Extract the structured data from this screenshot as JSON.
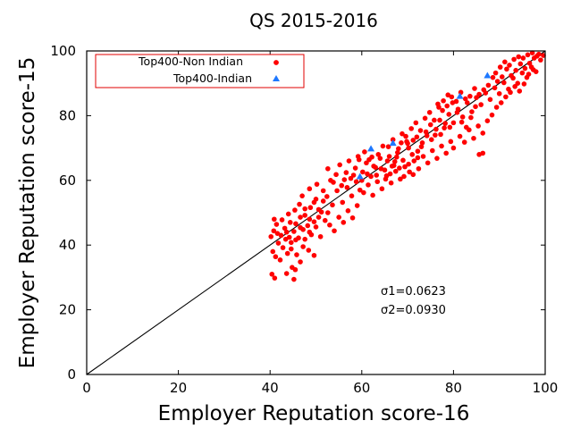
{
  "chart_data": {
    "type": "scatter",
    "title": "QS 2015-2016",
    "xlabel": "Employer Reputation score-16",
    "ylabel": "Employer Reputation score-15",
    "xlim": [
      0,
      100
    ],
    "ylim": [
      0,
      100
    ],
    "xticks": [
      0,
      20,
      40,
      60,
      80,
      100
    ],
    "yticks": [
      0,
      20,
      40,
      60,
      80,
      100
    ],
    "grid": false,
    "legend_position": "top-left",
    "reference_line": {
      "from": [
        0,
        0
      ],
      "to": [
        100,
        100
      ]
    },
    "annotations": [
      "σ1=0.0623",
      "σ2=0.0930"
    ],
    "series": [
      {
        "name": "Top400-Non Indian",
        "marker": "circle",
        "color": "#ff0000",
        "points": [
          [
            40.4,
            31.0
          ],
          [
            41.0,
            29.8
          ],
          [
            42.2,
            35.4
          ],
          [
            43.6,
            31.2
          ],
          [
            44.8,
            33.1
          ],
          [
            45.5,
            32.4
          ],
          [
            45.2,
            29.4
          ],
          [
            40.6,
            38.0
          ],
          [
            41.2,
            36.4
          ],
          [
            41.8,
            40.6
          ],
          [
            42.8,
            39.2
          ],
          [
            43.8,
            37.4
          ],
          [
            44.6,
            38.8
          ],
          [
            45.8,
            37.0
          ],
          [
            46.6,
            34.8
          ],
          [
            47.2,
            39.5
          ],
          [
            48.4,
            38.4
          ],
          [
            49.6,
            36.8
          ],
          [
            40.2,
            42.6
          ],
          [
            40.8,
            44.4
          ],
          [
            41.4,
            46.4
          ],
          [
            40.9,
            48.0
          ],
          [
            42.4,
            43.0
          ],
          [
            43.2,
            45.2
          ],
          [
            44.2,
            42.4
          ],
          [
            45.2,
            44.2
          ],
          [
            46.2,
            42.2
          ],
          [
            47.2,
            44.8
          ],
          [
            48.2,
            46.0
          ],
          [
            49.0,
            43.2
          ],
          [
            50.0,
            45.6
          ],
          [
            51.0,
            42.6
          ],
          [
            52.0,
            47.6
          ],
          [
            53.0,
            46.2
          ],
          [
            54.0,
            44.4
          ],
          [
            55.0,
            48.6
          ],
          [
            56.0,
            47.0
          ],
          [
            57.0,
            50.6
          ],
          [
            58.0,
            48.4
          ],
          [
            59.0,
            52.2
          ],
          [
            44.0,
            49.6
          ],
          [
            45.4,
            50.8
          ],
          [
            46.4,
            52.6
          ],
          [
            47.6,
            49.2
          ],
          [
            48.8,
            51.6
          ],
          [
            50.0,
            54.2
          ],
          [
            51.2,
            50.2
          ],
          [
            52.4,
            55.0
          ],
          [
            53.6,
            52.4
          ],
          [
            54.6,
            56.8
          ],
          [
            55.8,
            53.2
          ],
          [
            56.8,
            57.8
          ],
          [
            57.8,
            55.2
          ],
          [
            58.8,
            59.6
          ],
          [
            59.6,
            57.0
          ],
          [
            47.0,
            55.2
          ],
          [
            48.6,
            57.4
          ],
          [
            50.2,
            58.8
          ],
          [
            51.6,
            56.8
          ],
          [
            53.2,
            60.0
          ],
          [
            54.4,
            61.8
          ],
          [
            55.6,
            58.4
          ],
          [
            56.6,
            62.4
          ],
          [
            57.6,
            60.6
          ],
          [
            58.6,
            63.8
          ],
          [
            59.4,
            66.4
          ],
          [
            60.2,
            62.6
          ],
          [
            61.0,
            65.4
          ],
          [
            62.0,
            61.2
          ],
          [
            63.0,
            64.0
          ],
          [
            64.0,
            66.8
          ],
          [
            65.0,
            63.2
          ],
          [
            66.0,
            67.4
          ],
          [
            67.0,
            64.6
          ],
          [
            68.0,
            69.8
          ],
          [
            69.0,
            66.2
          ],
          [
            70.0,
            71.4
          ],
          [
            71.0,
            68.0
          ],
          [
            72.0,
            73.4
          ],
          [
            73.0,
            70.4
          ],
          [
            60.4,
            56.2
          ],
          [
            61.4,
            58.6
          ],
          [
            62.4,
            55.4
          ],
          [
            63.4,
            59.6
          ],
          [
            64.4,
            57.4
          ],
          [
            65.4,
            61.4
          ],
          [
            66.4,
            59.2
          ],
          [
            67.4,
            62.8
          ],
          [
            68.4,
            60.4
          ],
          [
            69.4,
            64.2
          ],
          [
            70.4,
            62.6
          ],
          [
            71.4,
            66.0
          ],
          [
            72.4,
            63.6
          ],
          [
            73.4,
            67.4
          ],
          [
            74.4,
            65.4
          ],
          [
            75.4,
            69.2
          ],
          [
            76.4,
            66.8
          ],
          [
            77.4,
            70.6
          ],
          [
            78.4,
            68.4
          ],
          [
            79.4,
            72.0
          ],
          [
            74.0,
            75.0
          ],
          [
            75.0,
            77.2
          ],
          [
            76.0,
            74.0
          ],
          [
            77.0,
            78.6
          ],
          [
            78.0,
            76.2
          ],
          [
            79.0,
            80.4
          ],
          [
            80.0,
            77.8
          ],
          [
            81.0,
            82.0
          ],
          [
            82.0,
            79.6
          ],
          [
            83.0,
            84.0
          ],
          [
            84.0,
            81.2
          ],
          [
            85.0,
            85.6
          ],
          [
            86.0,
            83.4
          ],
          [
            87.0,
            87.0
          ],
          [
            88.0,
            85.0
          ],
          [
            89.0,
            88.6
          ],
          [
            90.0,
            86.8
          ],
          [
            91.0,
            90.2
          ],
          [
            92.0,
            88.2
          ],
          [
            93.0,
            91.6
          ],
          [
            94.0,
            90.0
          ],
          [
            95.0,
            93.2
          ],
          [
            96.0,
            91.8
          ],
          [
            97.0,
            95.0
          ],
          [
            98.0,
            93.6
          ],
          [
            99.0,
            97.2
          ],
          [
            99.6,
            98.6
          ],
          [
            98.6,
            99.0
          ],
          [
            97.6,
            97.8
          ],
          [
            96.6,
            96.2
          ],
          [
            95.6,
            94.6
          ],
          [
            94.6,
            96.0
          ],
          [
            93.6,
            94.0
          ],
          [
            92.6,
            92.4
          ],
          [
            91.6,
            94.4
          ],
          [
            90.6,
            92.0
          ],
          [
            89.6,
            90.6
          ],
          [
            88.6,
            91.8
          ],
          [
            87.6,
            89.4
          ],
          [
            86.6,
            88.0
          ],
          [
            85.6,
            86.6
          ],
          [
            84.6,
            88.4
          ],
          [
            83.6,
            86.0
          ],
          [
            82.6,
            85.2
          ],
          [
            81.6,
            87.2
          ],
          [
            80.6,
            84.4
          ],
          [
            79.6,
            85.8
          ],
          [
            78.6,
            83.0
          ],
          [
            77.6,
            81.6
          ],
          [
            76.6,
            83.6
          ],
          [
            85.6,
            68.0
          ],
          [
            86.4,
            68.4
          ],
          [
            80.0,
            70.0
          ],
          [
            81.4,
            73.6
          ],
          [
            82.4,
            71.8
          ],
          [
            83.4,
            75.6
          ],
          [
            84.4,
            73.0
          ],
          [
            85.4,
            76.8
          ],
          [
            86.4,
            74.6
          ],
          [
            87.4,
            78.4
          ],
          [
            88.4,
            80.2
          ],
          [
            89.4,
            82.6
          ],
          [
            90.4,
            84.0
          ],
          [
            91.4,
            85.8
          ],
          [
            92.4,
            87.2
          ],
          [
            93.4,
            89.0
          ],
          [
            94.4,
            87.6
          ],
          [
            95.4,
            89.8
          ],
          [
            96.4,
            92.8
          ],
          [
            97.4,
            94.2
          ],
          [
            65.8,
            70.4
          ],
          [
            66.8,
            72.6
          ],
          [
            67.8,
            68.6
          ],
          [
            68.8,
            74.4
          ],
          [
            69.8,
            72.0
          ],
          [
            70.8,
            76.0
          ],
          [
            71.8,
            77.8
          ],
          [
            72.8,
            75.4
          ],
          [
            73.8,
            79.2
          ],
          [
            74.8,
            81.0
          ],
          [
            75.8,
            78.6
          ],
          [
            76.8,
            82.6
          ],
          [
            77.8,
            84.6
          ],
          [
            78.8,
            86.4
          ],
          [
            79.8,
            84.0
          ],
          [
            80.8,
            81.0
          ],
          [
            81.8,
            78.0
          ],
          [
            82.8,
            76.4
          ],
          [
            83.8,
            79.4
          ],
          [
            84.8,
            82.8
          ],
          [
            60.6,
            68.8
          ],
          [
            61.6,
            66.4
          ],
          [
            62.6,
            64.4
          ],
          [
            63.6,
            68.0
          ],
          [
            64.6,
            70.6
          ],
          [
            65.6,
            66.0
          ],
          [
            66.6,
            64.4
          ],
          [
            67.6,
            67.2
          ],
          [
            68.6,
            71.6
          ],
          [
            69.6,
            73.6
          ],
          [
            52.6,
            63.6
          ],
          [
            53.8,
            59.4
          ],
          [
            55.2,
            64.8
          ],
          [
            56.2,
            60.2
          ],
          [
            57.2,
            66.0
          ],
          [
            58.2,
            61.6
          ],
          [
            59.2,
            67.4
          ],
          [
            60.0,
            60.0
          ],
          [
            61.2,
            62.0
          ],
          [
            62.2,
            67.2
          ],
          [
            43.4,
            41.8
          ],
          [
            44.4,
            47.0
          ],
          [
            45.6,
            46.6
          ],
          [
            46.6,
            48.6
          ],
          [
            47.6,
            51.2
          ],
          [
            48.6,
            48.0
          ],
          [
            49.6,
            53.2
          ],
          [
            50.6,
            51.0
          ],
          [
            51.6,
            53.6
          ],
          [
            52.6,
            50.0
          ],
          [
            41.6,
            43.6
          ],
          [
            42.6,
            47.8
          ],
          [
            43.6,
            44.0
          ],
          [
            44.6,
            40.8
          ],
          [
            45.6,
            41.6
          ],
          [
            46.6,
            45.4
          ],
          [
            47.6,
            41.8
          ],
          [
            48.6,
            44.0
          ],
          [
            49.6,
            47.2
          ],
          [
            50.6,
            48.6
          ],
          [
            70.2,
            70.0
          ],
          [
            71.2,
            72.4
          ],
          [
            72.2,
            69.0
          ],
          [
            73.2,
            71.6
          ],
          [
            74.2,
            73.8
          ],
          [
            75.2,
            72.6
          ],
          [
            76.2,
            75.8
          ],
          [
            77.2,
            74.2
          ],
          [
            78.2,
            77.6
          ],
          [
            79.2,
            76.4
          ],
          [
            63.2,
            61.6
          ],
          [
            64.2,
            63.6
          ],
          [
            65.2,
            60.4
          ],
          [
            66.2,
            62.0
          ],
          [
            67.2,
            65.8
          ],
          [
            68.2,
            63.8
          ],
          [
            69.2,
            61.2
          ],
          [
            70.2,
            65.0
          ],
          [
            71.2,
            61.8
          ],
          [
            72.2,
            67.0
          ],
          [
            89.2,
            93.2
          ],
          [
            90.2,
            95.0
          ],
          [
            91.2,
            96.6
          ],
          [
            92.2,
            95.6
          ],
          [
            93.2,
            97.4
          ],
          [
            94.2,
            98.2
          ],
          [
            95.2,
            97.8
          ],
          [
            96.2,
            98.8
          ],
          [
            97.2,
            99.4
          ],
          [
            98.2,
            98.4
          ]
        ]
      },
      {
        "name": "Top400-Indian",
        "marker": "triangle",
        "color": "#1e78ff",
        "points": [
          [
            62.0,
            69.8
          ],
          [
            66.8,
            71.5
          ],
          [
            59.6,
            61.2
          ],
          [
            81.4,
            86.0
          ],
          [
            87.4,
            92.4
          ]
        ]
      }
    ]
  }
}
